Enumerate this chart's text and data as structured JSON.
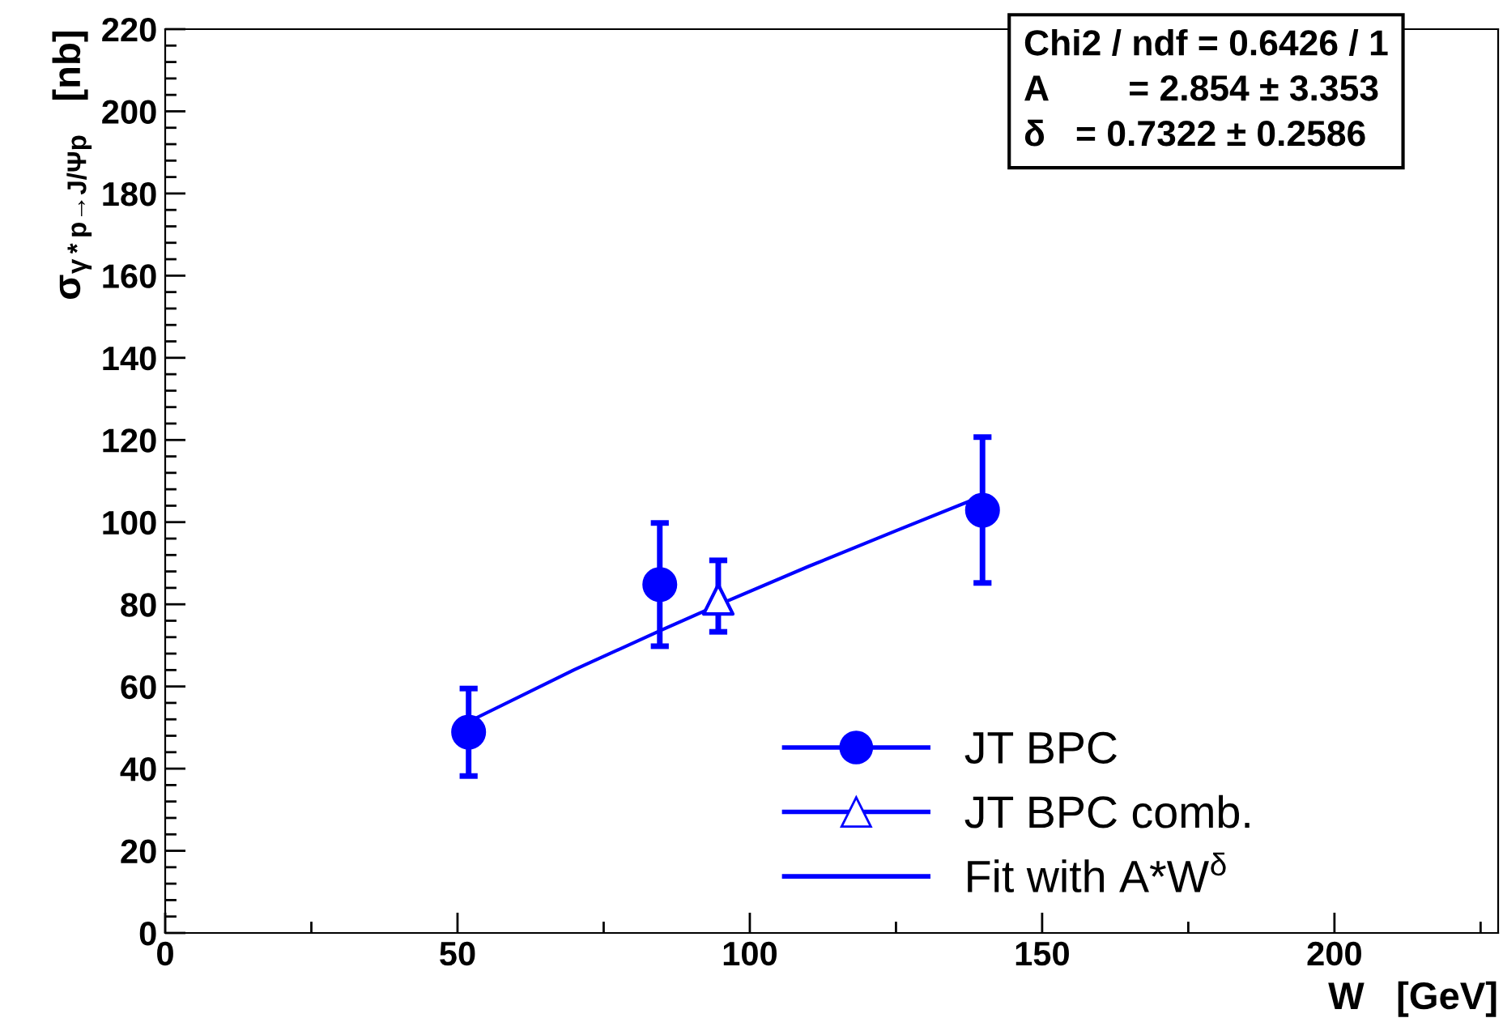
{
  "chart_data": {
    "type": "scatter",
    "xlabel": "W   [GeV]",
    "ylabel": "σ$_{γ*p→J/Ψp}$   [nb]",
    "xlim": [
      0,
      228
    ],
    "xticks": [
      0,
      50,
      100,
      150,
      200
    ],
    "ylim": [
      0,
      220
    ],
    "yticks": [
      0,
      20,
      40,
      60,
      80,
      100,
      120,
      140,
      160,
      180,
      200,
      220
    ],
    "grid": false,
    "legend": "bottom right",
    "series": [
      {
        "name": "JT BPC",
        "marker": "circle",
        "color": "#0000ff",
        "x": [
          51.9,
          84.6,
          139.8
        ],
        "values": [
          48.9,
          84.8,
          102.9
        ],
        "errors": [
          [
            38.2,
            59.5
          ],
          [
            69.8,
            99.8
          ],
          [
            85.2,
            120.7
          ]
        ]
      },
      {
        "name": "JT BPC comb.",
        "marker": "triangle",
        "color": "#0000ff",
        "x": [
          94.6
        ],
        "values": [
          81.2
        ],
        "errors": [
          [
            73.3,
            90.7
          ]
        ]
      },
      {
        "name": "Fit with A*W$^{δ}$",
        "type": "line",
        "marker": "none",
        "color": "#0000ff",
        "x": [
          52,
          70,
          85,
          95,
          110,
          125,
          140
        ],
        "values": [
          51.5,
          64.1,
          73.8,
          80.1,
          89.2,
          97.9,
          106.5
        ]
      }
    ],
    "annotations": [
      "Chi2 / ndf = 0.6426 / 1",
      "A        = 2.854 ± 3.353",
      "δ   = 0.7322 ± 0.2586"
    ]
  }
}
